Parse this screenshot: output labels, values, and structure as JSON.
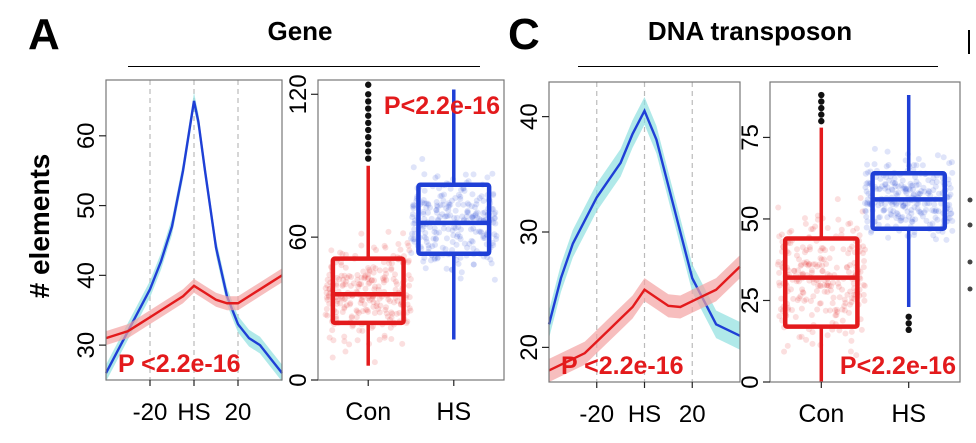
{
  "panels": {
    "A": {
      "letter": "A",
      "title": "Gene"
    },
    "C": {
      "letter": "C",
      "title": "DNA transposon"
    }
  },
  "ylabel": "# elements",
  "colors": {
    "con": "#e31a1c",
    "hs": "#1f3fd6",
    "hs_band": "#8fe0e0",
    "con_band": "#f4a3a3"
  },
  "chart_data": [
    {
      "id": "gene-profile",
      "type": "line",
      "xlabel": "",
      "xticks": [
        "-20",
        "HS",
        "20"
      ],
      "xtick_values": [
        -20,
        0,
        20
      ],
      "yticks": [
        "30",
        "40",
        "50",
        "60"
      ],
      "ylim": [
        25,
        68
      ],
      "xlim": [
        -40,
        40
      ],
      "annotation": "P <2.2e-16",
      "series": [
        {
          "key": "hs",
          "x": [
            -40,
            -35,
            -30,
            -25,
            -20,
            -15,
            -10,
            -5,
            -2,
            0,
            2,
            5,
            10,
            15,
            20,
            25,
            30,
            35,
            40
          ],
          "y": [
            26,
            29,
            32,
            35,
            38,
            42,
            47,
            55,
            61,
            65,
            62,
            55,
            44,
            37,
            33,
            31,
            30,
            28,
            26
          ]
        },
        {
          "key": "con",
          "x": [
            -40,
            -35,
            -30,
            -25,
            -20,
            -15,
            -10,
            -5,
            0,
            5,
            10,
            15,
            20,
            25,
            30,
            35,
            40
          ],
          "y": [
            31,
            31.5,
            32,
            33,
            34,
            35,
            36,
            37,
            38.5,
            37.5,
            36.5,
            36,
            36,
            37,
            38,
            39,
            40
          ]
        }
      ]
    },
    {
      "id": "gene-box",
      "type": "box",
      "categories": [
        "Con",
        "HS"
      ],
      "yticks": [
        "0",
        "60",
        "120"
      ],
      "ylim": [
        0,
        126
      ],
      "annotation": "P<2.2e-16",
      "boxes": [
        {
          "key": "con",
          "whisker_low": 6,
          "q1": 24,
          "median": 36,
          "q3": 51,
          "whisker_high": 90,
          "outliers": [
            93,
            96,
            99,
            102,
            105,
            108,
            111,
            114,
            117,
            120,
            124
          ]
        },
        {
          "key": "hs",
          "whisker_low": 17,
          "q1": 53,
          "median": 66,
          "q3": 82,
          "whisker_high": 122,
          "outliers": []
        }
      ]
    },
    {
      "id": "dna-profile",
      "type": "line",
      "xlabel": "",
      "xticks": [
        "-20",
        "HS",
        "20"
      ],
      "xtick_values": [
        -20,
        0,
        20
      ],
      "yticks": [
        "20",
        "30",
        "40"
      ],
      "ylim": [
        17,
        43
      ],
      "xlim": [
        -40,
        40
      ],
      "annotation": "P <2.2e-16",
      "series": [
        {
          "key": "hs",
          "x": [
            -40,
            -35,
            -30,
            -25,
            -20,
            -15,
            -10,
            -5,
            0,
            5,
            10,
            15,
            20,
            25,
            30,
            35,
            40
          ],
          "y": [
            22,
            26,
            29,
            31,
            33,
            34.5,
            36,
            38.5,
            40.5,
            38,
            34,
            30,
            26,
            24,
            22,
            21.5,
            21
          ]
        },
        {
          "key": "con",
          "x": [
            -40,
            -35,
            -30,
            -25,
            -20,
            -15,
            -10,
            -5,
            0,
            5,
            10,
            15,
            20,
            25,
            30,
            35,
            40
          ],
          "y": [
            18,
            18.5,
            19,
            19.5,
            20.5,
            21.5,
            22.5,
            23.5,
            25,
            24.3,
            23.6,
            23.5,
            24,
            24.5,
            25,
            26,
            27
          ]
        }
      ]
    },
    {
      "id": "dna-box",
      "type": "box",
      "categories": [
        "Con",
        "HS"
      ],
      "yticks": [
        "0",
        "25",
        "50",
        "75"
      ],
      "ylim": [
        0,
        92
      ],
      "annotation": "P<2.2e-16",
      "boxes": [
        {
          "key": "con",
          "whisker_low": 0,
          "q1": 17,
          "median": 32,
          "q3": 44,
          "whisker_high": 78,
          "outliers": [
            80,
            82,
            84,
            86,
            88
          ]
        },
        {
          "key": "hs",
          "whisker_low": 23,
          "q1": 47,
          "median": 56,
          "q3": 64,
          "whisker_high": 88,
          "outliers": [
            16,
            18,
            20
          ]
        }
      ]
    }
  ]
}
